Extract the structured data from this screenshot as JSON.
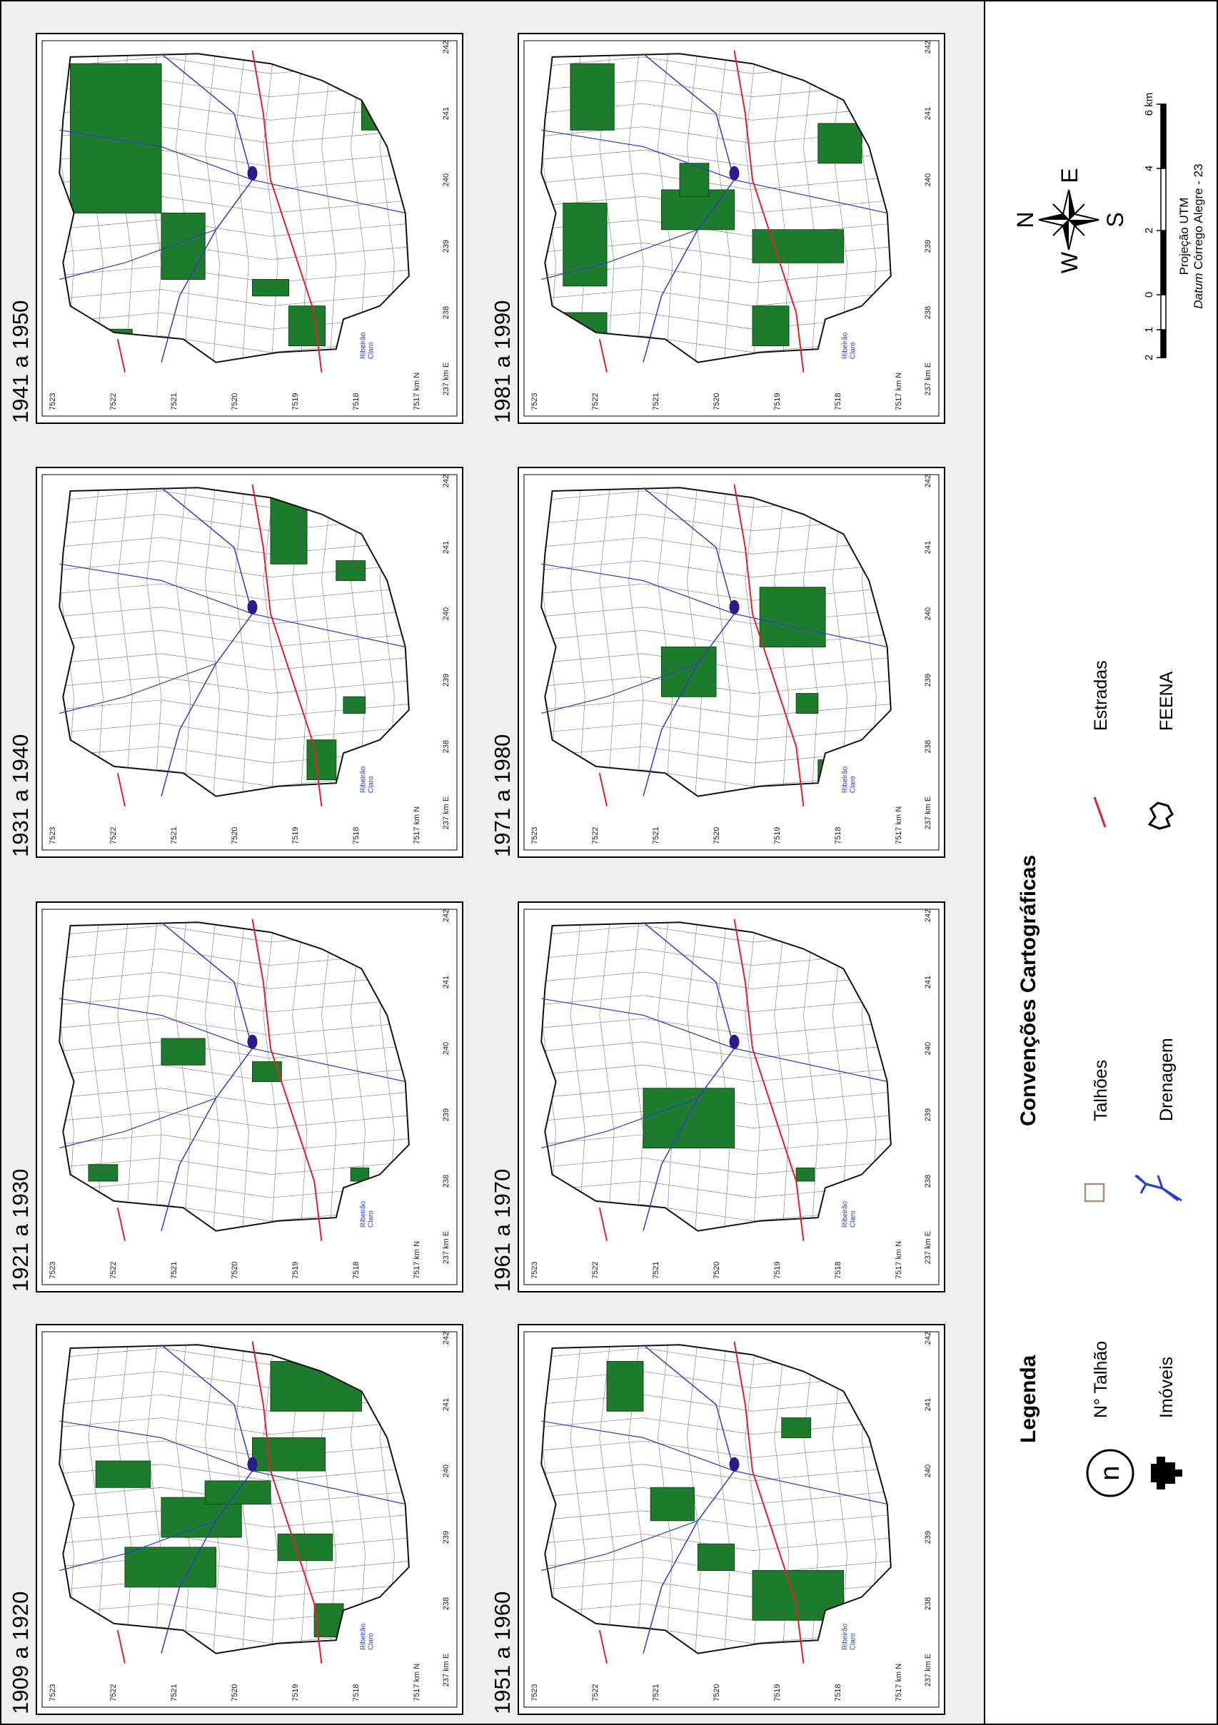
{
  "panels": [
    {
      "title": "1909 a 1920"
    },
    {
      "title": "1921 a 1930"
    },
    {
      "title": "1931 a 1940"
    },
    {
      "title": "1941 a 1950"
    },
    {
      "title": "1951 a 1960"
    },
    {
      "title": "1961 a 1970"
    },
    {
      "title": "1971 a 1980"
    },
    {
      "title": "1981 a 1990"
    }
  ],
  "map_labels": {
    "northing": [
      "7523",
      "7522",
      "7521",
      "7520",
      "7519",
      "7518",
      "7517 km N"
    ],
    "easting": [
      "237 km E",
      "238",
      "239",
      "240",
      "241",
      "242"
    ],
    "river": [
      "Ribeirão",
      "Claro"
    ]
  },
  "legend": {
    "title": "Legenda",
    "symbol": "n",
    "items": [
      "N° Talhão",
      "Imóveis"
    ]
  },
  "conventions": {
    "title": "Convenções Cartográficas",
    "items": [
      "Talhões",
      "Drenagem",
      "Estradas",
      "FEENA"
    ]
  },
  "compass": {
    "n": "N",
    "s": "S",
    "e": "E",
    "w": "W"
  },
  "scale": {
    "ticks": [
      "2",
      "1",
      "0",
      "2",
      "4",
      "6 km"
    ]
  },
  "projection": "Projeção UTM",
  "datum": {
    "italic": "Datum",
    "rest": "Córrego Alegre - 23"
  }
}
